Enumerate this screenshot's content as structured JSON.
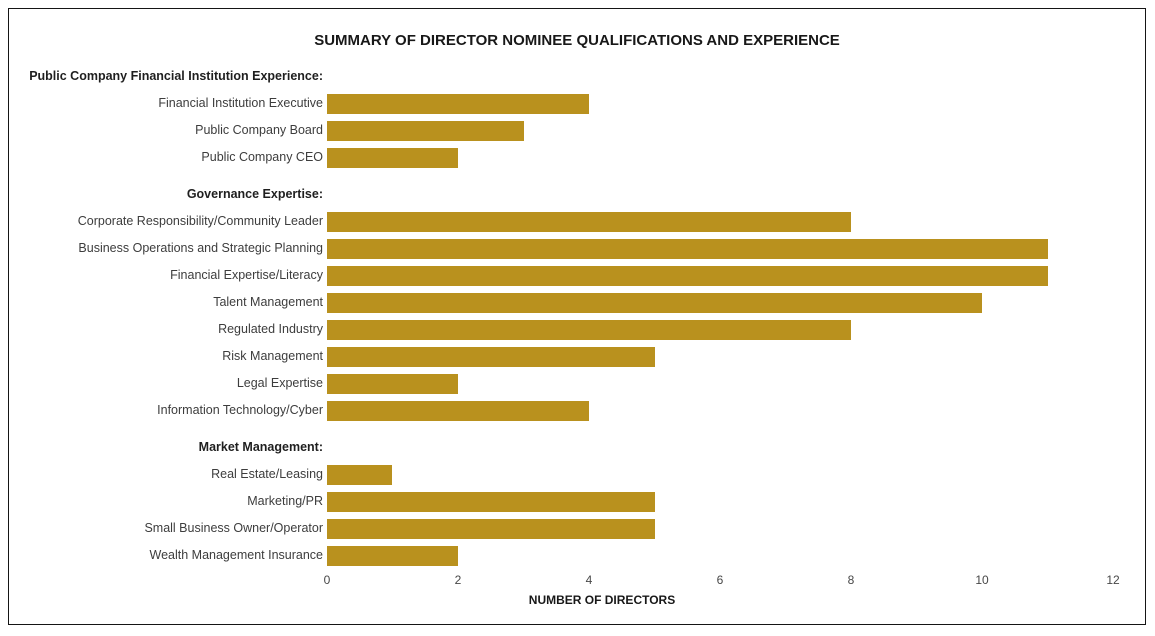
{
  "title": "SUMMARY OF DIRECTOR NOMINEE QUALIFICATIONS AND EXPERIENCE",
  "colors": {
    "bar": "#B9911E",
    "frame_border": "#151515"
  },
  "chart_data": {
    "type": "bar",
    "orientation": "horizontal",
    "title": "SUMMARY OF DIRECTOR NOMINEE QUALIFICATIONS AND EXPERIENCE",
    "xlabel": "NUMBER OF DIRECTORS",
    "xlim": [
      0,
      12
    ],
    "x_ticks": [
      0,
      2,
      4,
      6,
      8,
      10,
      12
    ],
    "grid": false,
    "legend": false,
    "bar_color": "#B9911E",
    "groups": [
      {
        "header": "Public Company Financial Institution Experience:",
        "items": [
          {
            "label": "Financial Institution Executive",
            "value": 4
          },
          {
            "label": "Public Company Board",
            "value": 3
          },
          {
            "label": "Public Company CEO",
            "value": 2
          }
        ]
      },
      {
        "header": "Governance Expertise:",
        "items": [
          {
            "label": "Corporate Responsibility/Community Leader",
            "value": 8
          },
          {
            "label": "Business Operations and Strategic Planning",
            "value": 11
          },
          {
            "label": "Financial Expertise/Literacy",
            "value": 11
          },
          {
            "label": "Talent Management",
            "value": 10
          },
          {
            "label": "Regulated Industry",
            "value": 8
          },
          {
            "label": "Risk Management",
            "value": 5
          },
          {
            "label": "Legal Expertise",
            "value": 2
          },
          {
            "label": "Information Technology/Cyber",
            "value": 4
          }
        ]
      },
      {
        "header": "Market Management:",
        "items": [
          {
            "label": "Real Estate/Leasing",
            "value": 1
          },
          {
            "label": "Marketing/PR",
            "value": 5
          },
          {
            "label": "Small Business Owner/Operator",
            "value": 5
          },
          {
            "label": "Wealth Management Insurance",
            "value": 2
          }
        ]
      }
    ]
  }
}
